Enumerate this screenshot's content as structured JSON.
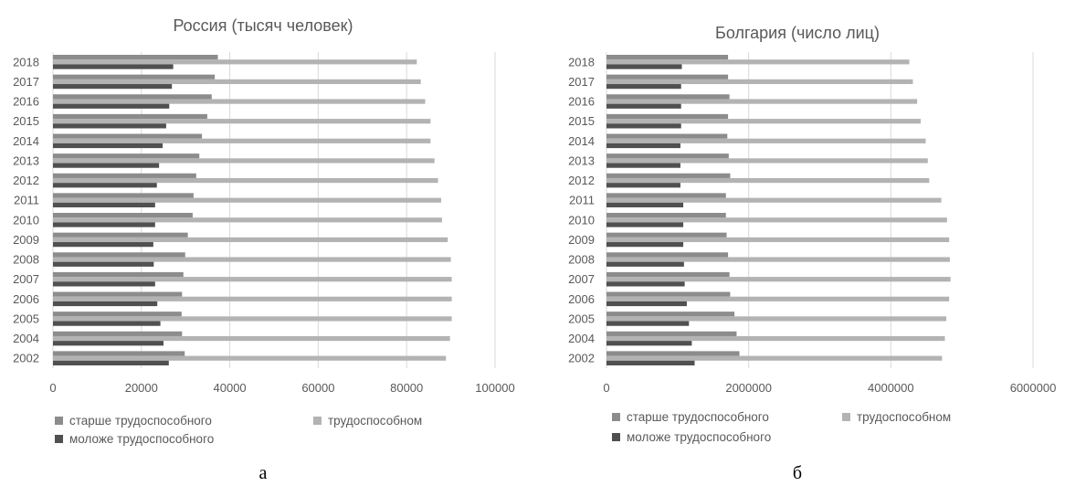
{
  "colors": {
    "older": "#8c8c8c",
    "working": "#b3b3b3",
    "younger": "#505050",
    "grid": "#d9d9d9"
  },
  "chart_data": [
    {
      "type": "bar",
      "orientation": "horizontal",
      "title": "Россия (тысяч человек)",
      "subfigure_label": "а",
      "categories": [
        "2002",
        "2004",
        "2005",
        "2006",
        "2007",
        "2008",
        "2009",
        "2010",
        "2011",
        "2012",
        "2013",
        "2014",
        "2015",
        "2016",
        "2017",
        "2018"
      ],
      "x_ticks": [
        "0",
        "20000",
        "40000",
        "60000",
        "80000",
        "100000"
      ],
      "xlim": [
        0,
        100000
      ],
      "grid": true,
      "legend_position": "bottom",
      "series": [
        {
          "name": "старше трудоспособного",
          "color_key": "older",
          "values": [
            29800,
            29200,
            29100,
            29200,
            29500,
            29900,
            30500,
            31600,
            31800,
            32400,
            33100,
            33700,
            34900,
            35900,
            36600,
            37300
          ]
        },
        {
          "name": "трудоспособном",
          "color_key": "working",
          "values": [
            88900,
            89800,
            90200,
            90200,
            90200,
            90000,
            89300,
            88000,
            87800,
            87100,
            86300,
            85400,
            85400,
            84200,
            83200,
            82300
          ]
        },
        {
          "name": "моложе трудоспособного",
          "color_key": "younger",
          "values": [
            26200,
            25000,
            24300,
            23600,
            23100,
            22800,
            22700,
            23100,
            23100,
            23500,
            24000,
            24800,
            25600,
            26300,
            26900,
            27200
          ]
        }
      ]
    },
    {
      "type": "bar",
      "orientation": "horizontal",
      "title": "Болгария (число лиц)",
      "subfigure_label": "б",
      "categories": [
        "2002",
        "2004",
        "2005",
        "2006",
        "2007",
        "2008",
        "2009",
        "2010",
        "2011",
        "2012",
        "2013",
        "2014",
        "2015",
        "2016",
        "2017",
        "2018"
      ],
      "x_ticks": [
        "0",
        "2000000",
        "4000000",
        "6000000"
      ],
      "xlim": [
        0,
        6000000
      ],
      "grid": true,
      "legend_position": "bottom",
      "series": [
        {
          "name": "старше трудоспособного",
          "color_key": "older",
          "values": [
            1870000,
            1830000,
            1800000,
            1740000,
            1730000,
            1710000,
            1690000,
            1680000,
            1680000,
            1740000,
            1720000,
            1700000,
            1710000,
            1730000,
            1710000,
            1710000
          ]
        },
        {
          "name": "трудоспособном",
          "color_key": "working",
          "values": [
            4720000,
            4760000,
            4780000,
            4820000,
            4840000,
            4830000,
            4820000,
            4790000,
            4710000,
            4540000,
            4520000,
            4490000,
            4420000,
            4370000,
            4310000,
            4260000
          ]
        },
        {
          "name": "моложе трудоспособного",
          "color_key": "younger",
          "values": [
            1240000,
            1200000,
            1160000,
            1130000,
            1100000,
            1090000,
            1080000,
            1080000,
            1080000,
            1040000,
            1040000,
            1040000,
            1050000,
            1050000,
            1050000,
            1060000
          ]
        }
      ]
    }
  ]
}
